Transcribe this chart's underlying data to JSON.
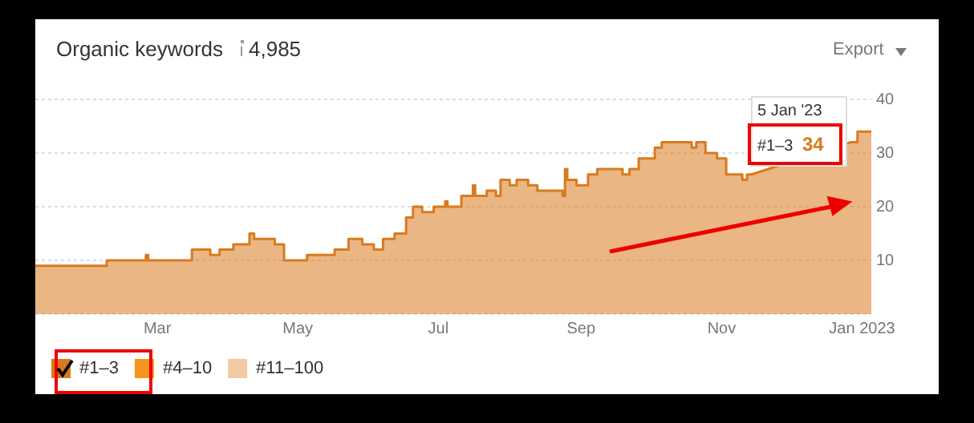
{
  "chart_data": {
    "type": "area",
    "title": "Organic keywords",
    "subtitle": "4,985",
    "x": [
      "2022-01-07",
      "2022-02-07",
      "2022-02-07",
      "2022-02-24",
      "2022-02-24",
      "2022-02-25",
      "2022-02-25",
      "2022-03-16",
      "2022-03-16",
      "2022-03-24",
      "2022-03-24",
      "2022-03-28",
      "2022-03-28",
      "2022-04-03",
      "2022-04-03",
      "2022-04-10",
      "2022-04-10",
      "2022-04-12",
      "2022-04-12",
      "2022-04-21",
      "2022-04-21",
      "2022-04-25",
      "2022-04-25",
      "2022-05-05",
      "2022-05-05",
      "2022-05-17",
      "2022-05-17",
      "2022-05-23",
      "2022-05-23",
      "2022-05-29",
      "2022-05-29",
      "2022-06-03",
      "2022-06-03",
      "2022-06-07",
      "2022-06-07",
      "2022-06-12",
      "2022-06-12",
      "2022-06-17",
      "2022-06-17",
      "2022-06-20",
      "2022-06-20",
      "2022-06-24",
      "2022-06-24",
      "2022-06-29",
      "2022-06-29",
      "2022-07-04",
      "2022-07-04",
      "2022-07-05",
      "2022-07-05",
      "2022-07-11",
      "2022-07-11",
      "2022-07-16",
      "2022-07-16",
      "2022-07-17",
      "2022-07-17",
      "2022-07-22",
      "2022-07-22",
      "2022-07-26",
      "2022-07-26",
      "2022-07-28",
      "2022-07-28",
      "2022-08-01",
      "2022-08-01",
      "2022-08-04",
      "2022-08-04",
      "2022-08-09",
      "2022-08-09",
      "2022-08-13",
      "2022-08-13",
      "2022-08-24",
      "2022-08-24",
      "2022-08-25",
      "2022-08-25",
      "2022-08-26",
      "2022-08-26",
      "2022-08-30",
      "2022-08-30",
      "2022-09-04",
      "2022-09-04",
      "2022-09-08",
      "2022-09-08",
      "2022-09-19",
      "2022-09-19",
      "2022-09-22",
      "2022-09-22",
      "2022-09-26",
      "2022-09-26",
      "2022-10-03",
      "2022-10-03",
      "2022-10-06",
      "2022-10-06",
      "2022-10-19",
      "2022-10-19",
      "2022-10-21",
      "2022-10-21",
      "2022-10-25",
      "2022-10-25",
      "2022-10-30",
      "2022-10-30",
      "2022-11-03",
      "2022-11-03",
      "2022-11-10",
      "2022-11-10",
      "2022-11-12",
      "2022-11-12",
      "2022-11-14",
      "2022-12-27",
      "2022-12-30",
      "2022-12-30",
      "2023-01-05"
    ],
    "series": [
      {
        "name": "#1–3",
        "color": "#d97a1e",
        "values": [
          9,
          9,
          10,
          10,
          11,
          11,
          10,
          10,
          12,
          12,
          11,
          11,
          12,
          12,
          13,
          13,
          15,
          15,
          14,
          14,
          13,
          13,
          10,
          10,
          11,
          11,
          12,
          12,
          14,
          14,
          13,
          13,
          12,
          12,
          14,
          14,
          15,
          15,
          18,
          18,
          20,
          20,
          19,
          19,
          20,
          20,
          21,
          21,
          20,
          20,
          22,
          22,
          24,
          24,
          22,
          22,
          23,
          23,
          22,
          22,
          25,
          25,
          24,
          24,
          25,
          25,
          24,
          24,
          23,
          23,
          22,
          22,
          27,
          27,
          25,
          25,
          24,
          24,
          26,
          26,
          27,
          27,
          26,
          26,
          27,
          27,
          29,
          29,
          31,
          31,
          32,
          32,
          31,
          31,
          32,
          32,
          30,
          30,
          29,
          29,
          26,
          26,
          25,
          25,
          26,
          26,
          32,
          32,
          34,
          34
        ]
      },
      {
        "name": "#4–10",
        "color": "#f7941d",
        "values": [
          null,
          null,
          null,
          null,
          null,
          null,
          null,
          null,
          null,
          null,
          null,
          null,
          null,
          null,
          null,
          null,
          null,
          null,
          null,
          null,
          null,
          null,
          null,
          null,
          null,
          null,
          null,
          null,
          null,
          null,
          null,
          null,
          null,
          null,
          null,
          null,
          null,
          null,
          null,
          null,
          null,
          null,
          null,
          null,
          null,
          null,
          null,
          null,
          null,
          null,
          null,
          null,
          null,
          null,
          null,
          null,
          null,
          null,
          null,
          null,
          null,
          null,
          null,
          null,
          null,
          null,
          null,
          null,
          null,
          null,
          null,
          null,
          null,
          null,
          null,
          null,
          null,
          null,
          null,
          null,
          null,
          null,
          null,
          null,
          null,
          null,
          null,
          null,
          null,
          null,
          null,
          null,
          null,
          null,
          null,
          null,
          null,
          null,
          null,
          null,
          null,
          null,
          null,
          null,
          null,
          null,
          null,
          null,
          null,
          null
        ]
      },
      {
        "name": "#11–100",
        "color": "#f2c9a0",
        "values": [
          null,
          null,
          null,
          null,
          null,
          null,
          null,
          null,
          null,
          null,
          null,
          null,
          null,
          null,
          null,
          null,
          null,
          null,
          null,
          null,
          null,
          null,
          null,
          null,
          null,
          null,
          null,
          null,
          null,
          null,
          null,
          null,
          null,
          null,
          null,
          null,
          null,
          null,
          null,
          null,
          null,
          null,
          null,
          null,
          null,
          null,
          null,
          null,
          null,
          null,
          null,
          null,
          null,
          null,
          null,
          null,
          null,
          null,
          null,
          null,
          null,
          null,
          null,
          null,
          null,
          null,
          null,
          null,
          null,
          null,
          null,
          null,
          null,
          null,
          null,
          null,
          null,
          null,
          null,
          null,
          null,
          null,
          null,
          null,
          null,
          null,
          null,
          null,
          null,
          null,
          null,
          null,
          null,
          null,
          null,
          null,
          null,
          null,
          null,
          null,
          null,
          null,
          null,
          null,
          null,
          null,
          null,
          null,
          null,
          null
        ]
      }
    ],
    "xlim": [
      "2022-01-07",
      "2023-01-05"
    ],
    "xticks": [
      {
        "value": "2022-03-01",
        "label": "Mar"
      },
      {
        "value": "2022-05-01",
        "label": "May"
      },
      {
        "value": "2022-07-01",
        "label": "Jul"
      },
      {
        "value": "2022-09-01",
        "label": "Sep"
      },
      {
        "value": "2022-11-01",
        "label": "Nov"
      },
      {
        "value": "2023-01-01",
        "label": "Jan 2023"
      }
    ],
    "ylim": [
      0,
      40
    ],
    "yticks": [
      {
        "value": 0,
        "label": null
      },
      10,
      20,
      30,
      40
    ],
    "grid": "y",
    "legend": "bottom left",
    "marker": "none",
    "annotations": [
      "Export",
      "5 Jan '23",
      "34"
    ]
  }
}
